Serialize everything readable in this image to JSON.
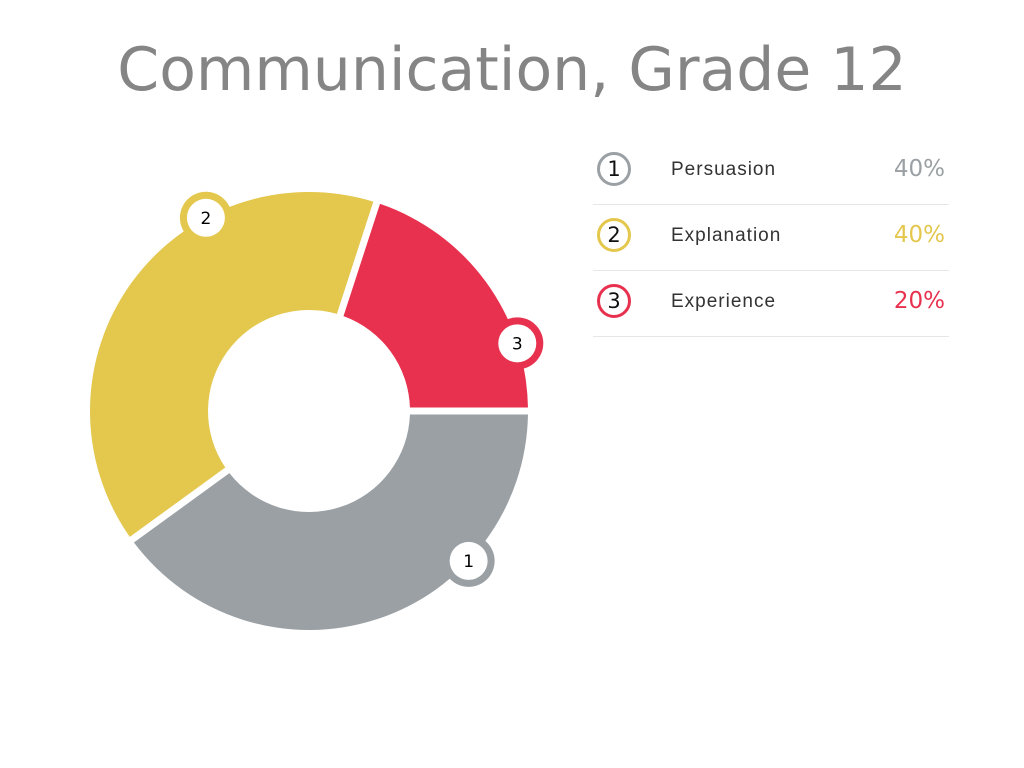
{
  "chart_data": {
    "type": "pie",
    "title": "Communication, Grade 12",
    "categories": [
      "Persuasion",
      "Explanation",
      "Experience"
    ],
    "values": [
      40,
      40,
      20
    ],
    "unit": "%",
    "value_labels": [
      "40%",
      "40%",
      "20%"
    ],
    "markers": [
      "1",
      "2",
      "3"
    ],
    "colors": [
      "#9aa0a4",
      "#e4c74d",
      "#e8314e"
    ],
    "legend_position": "right"
  }
}
